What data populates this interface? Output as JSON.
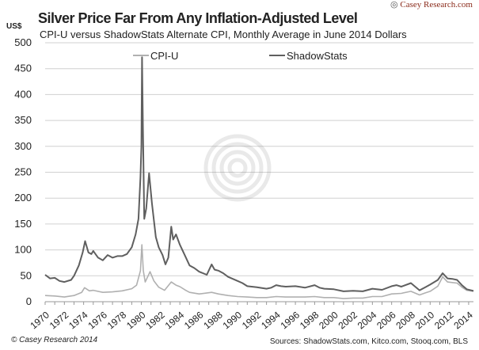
{
  "header": {
    "title": "Silver Price Far From Any Inflation-Adjusted Level",
    "subtitle": "CPI-U versus ShadowStats Alternate CPI, Monthly Average in June 2014 Dollars",
    "unit": "US$",
    "logo_text": "Casey Research.com"
  },
  "footer": {
    "copyright": "© Casey Research 2014",
    "sources": "Sources: ShadowStats.com, Kitco.com, Stooq.com, BLS"
  },
  "chart_data": {
    "type": "line",
    "ylabel": "US$",
    "ylim": [
      0,
      500
    ],
    "xlim": [
      1970,
      2014.5
    ],
    "grid": true,
    "legend": "top",
    "yticks": [
      "0",
      "50",
      "100",
      "150",
      "200",
      "250",
      "300",
      "350",
      "400",
      "450",
      "500"
    ],
    "xticks": [
      "1970",
      "1972",
      "1974",
      "1976",
      "1978",
      "1980",
      "1982",
      "1984",
      "1986",
      "1988",
      "1990",
      "1992",
      "1994",
      "1996",
      "1998",
      "2000",
      "2002",
      "2004",
      "2006",
      "2008",
      "2010",
      "2012",
      "2014"
    ],
    "series": [
      {
        "name": "CPI-U",
        "color": "#b0b0b0",
        "points": [
          [
            1970,
            12
          ],
          [
            1971,
            11
          ],
          [
            1972,
            9
          ],
          [
            1973,
            12
          ],
          [
            1973.8,
            18
          ],
          [
            1974.1,
            27
          ],
          [
            1974.6,
            21
          ],
          [
            1975,
            22
          ],
          [
            1976,
            18
          ],
          [
            1977,
            19
          ],
          [
            1978,
            21
          ],
          [
            1979,
            25
          ],
          [
            1979.5,
            32
          ],
          [
            1979.9,
            60
          ],
          [
            1980.05,
            110
          ],
          [
            1980.2,
            60
          ],
          [
            1980.4,
            38
          ],
          [
            1980.7,
            50
          ],
          [
            1980.9,
            58
          ],
          [
            1981.3,
            40
          ],
          [
            1981.8,
            28
          ],
          [
            1982.4,
            22
          ],
          [
            1983.1,
            38
          ],
          [
            1983.6,
            32
          ],
          [
            1984,
            29
          ],
          [
            1984.6,
            22
          ],
          [
            1985,
            18
          ],
          [
            1986,
            15
          ],
          [
            1987.3,
            18
          ],
          [
            1988,
            15
          ],
          [
            1989,
            12
          ],
          [
            1990,
            10
          ],
          [
            1991,
            9
          ],
          [
            1992,
            8
          ],
          [
            1993,
            8
          ],
          [
            1994,
            10
          ],
          [
            1995,
            9
          ],
          [
            1996,
            9
          ],
          [
            1997,
            9
          ],
          [
            1998,
            10
          ],
          [
            1999,
            8
          ],
          [
            2000,
            8
          ],
          [
            2001,
            6
          ],
          [
            2002,
            7
          ],
          [
            2003,
            7
          ],
          [
            2004,
            10
          ],
          [
            2005,
            10
          ],
          [
            2006,
            15
          ],
          [
            2007,
            16
          ],
          [
            2008,
            20
          ],
          [
            2008.9,
            13
          ],
          [
            2009.5,
            17
          ],
          [
            2010,
            20
          ],
          [
            2010.8,
            30
          ],
          [
            2011.3,
            48
          ],
          [
            2011.8,
            38
          ],
          [
            2012.3,
            37
          ],
          [
            2012.8,
            36
          ],
          [
            2013.3,
            28
          ],
          [
            2013.8,
            22
          ],
          [
            2014.5,
            20
          ]
        ]
      },
      {
        "name": "ShadowStats",
        "color": "#5f5f5f",
        "points": [
          [
            1970,
            52
          ],
          [
            1970.5,
            45
          ],
          [
            1971,
            46
          ],
          [
            1971.5,
            40
          ],
          [
            1972,
            38
          ],
          [
            1972.7,
            42
          ],
          [
            1973,
            50
          ],
          [
            1973.5,
            70
          ],
          [
            1973.9,
            95
          ],
          [
            1974.15,
            117
          ],
          [
            1974.5,
            95
          ],
          [
            1974.8,
            92
          ],
          [
            1975,
            98
          ],
          [
            1975.5,
            85
          ],
          [
            1976,
            80
          ],
          [
            1976.5,
            90
          ],
          [
            1977,
            85
          ],
          [
            1977.5,
            88
          ],
          [
            1978,
            88
          ],
          [
            1978.5,
            92
          ],
          [
            1979,
            105
          ],
          [
            1979.4,
            130
          ],
          [
            1979.7,
            160
          ],
          [
            1979.9,
            240
          ],
          [
            1980.0,
            300
          ],
          [
            1980.07,
            472
          ],
          [
            1980.15,
            350
          ],
          [
            1980.3,
            160
          ],
          [
            1980.5,
            180
          ],
          [
            1980.8,
            248
          ],
          [
            1981.1,
            190
          ],
          [
            1981.5,
            125
          ],
          [
            1981.8,
            105
          ],
          [
            1982.2,
            90
          ],
          [
            1982.5,
            72
          ],
          [
            1982.8,
            85
          ],
          [
            1983.1,
            145
          ],
          [
            1983.3,
            120
          ],
          [
            1983.6,
            130
          ],
          [
            1984,
            110
          ],
          [
            1984.5,
            90
          ],
          [
            1985,
            70
          ],
          [
            1985.5,
            65
          ],
          [
            1986,
            58
          ],
          [
            1986.8,
            52
          ],
          [
            1987.3,
            72
          ],
          [
            1987.6,
            62
          ],
          [
            1988,
            60
          ],
          [
            1988.5,
            55
          ],
          [
            1989,
            48
          ],
          [
            1990,
            40
          ],
          [
            1990.5,
            36
          ],
          [
            1991,
            30
          ],
          [
            1992,
            28
          ],
          [
            1993,
            25
          ],
          [
            1993.5,
            27
          ],
          [
            1994,
            32
          ],
          [
            1994.5,
            30
          ],
          [
            1995,
            29
          ],
          [
            1996,
            30
          ],
          [
            1997,
            27
          ],
          [
            1998,
            32
          ],
          [
            1998.5,
            27
          ],
          [
            1999,
            25
          ],
          [
            2000,
            24
          ],
          [
            2001,
            20
          ],
          [
            2002,
            21
          ],
          [
            2003,
            20
          ],
          [
            2004,
            25
          ],
          [
            2005,
            23
          ],
          [
            2006,
            30
          ],
          [
            2006.5,
            32
          ],
          [
            2007,
            29
          ],
          [
            2008,
            36
          ],
          [
            2008.9,
            22
          ],
          [
            2009.5,
            28
          ],
          [
            2010,
            33
          ],
          [
            2010.8,
            42
          ],
          [
            2011.3,
            55
          ],
          [
            2011.8,
            45
          ],
          [
            2012.3,
            44
          ],
          [
            2012.8,
            42
          ],
          [
            2013.3,
            32
          ],
          [
            2013.8,
            24
          ],
          [
            2014.5,
            21
          ]
        ]
      }
    ]
  }
}
